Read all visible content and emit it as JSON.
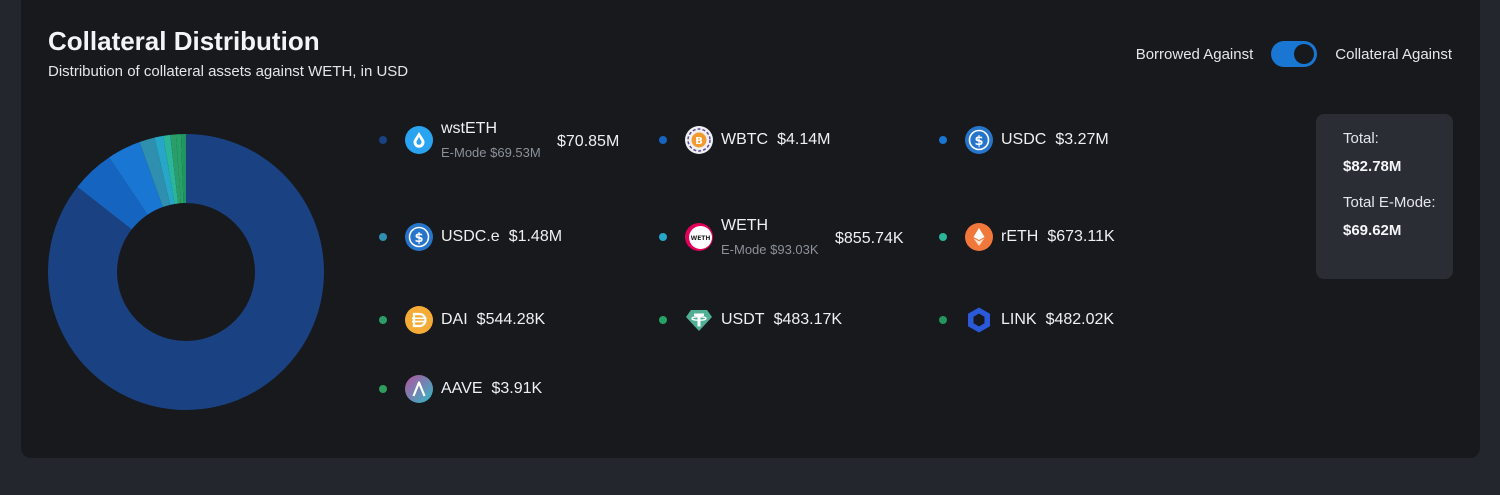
{
  "header": {
    "title": "Collateral Distribution",
    "subtitle": "Distribution of collateral assets against WETH, in USD"
  },
  "toggle": {
    "left_label": "Borrowed Against",
    "right_label": "Collateral Against",
    "state": "Collateral Against",
    "accent": "#1976d2"
  },
  "totals": {
    "total_label": "Total:",
    "total_value": "$82.78M",
    "emode_label": "Total E-Mode:",
    "emode_value": "$69.62M"
  },
  "assets": [
    {
      "name": "wstETH",
      "value": "$70.85M",
      "emode": "E-Mode $69.53M",
      "color": "#1a4282",
      "icon": "wsteth-icon"
    },
    {
      "name": "WBTC",
      "value": "$4.14M",
      "color": "#1565c0",
      "icon": "wbtc-icon"
    },
    {
      "name": "USDC",
      "value": "$3.27M",
      "color": "#1976d2",
      "icon": "usdc-icon"
    },
    {
      "name": "USDC.e",
      "value": "$1.48M",
      "color": "#2e8faf",
      "icon": "usdce-icon"
    },
    {
      "name": "WETH",
      "value": "$855.74K",
      "emode": "E-Mode $93.03K",
      "color": "#26a7c9",
      "icon": "weth-icon"
    },
    {
      "name": "rETH",
      "value": "$673.11K",
      "color": "#2bb59a",
      "icon": "reth-icon"
    },
    {
      "name": "DAI",
      "value": "$544.28K",
      "color": "#2a9d6a",
      "icon": "dai-icon"
    },
    {
      "name": "USDT",
      "value": "$483.17K",
      "color": "#26a269",
      "icon": "usdt-icon"
    },
    {
      "name": "LINK",
      "value": "$482.02K",
      "color": "#219660",
      "icon": "link-icon"
    },
    {
      "name": "AAVE",
      "value": "$3.91K",
      "color": "#2f9e5c",
      "icon": "aave-icon"
    }
  ],
  "chart_data": {
    "type": "pie",
    "categories": [
      "wstETH",
      "WBTC",
      "USDC",
      "USDC.e",
      "WETH",
      "rETH",
      "DAI",
      "USDT",
      "LINK",
      "AAVE"
    ],
    "values": [
      70850000,
      4140000,
      3270000,
      1480000,
      855740,
      673110,
      544280,
      483170,
      482020,
      3910
    ]
  }
}
